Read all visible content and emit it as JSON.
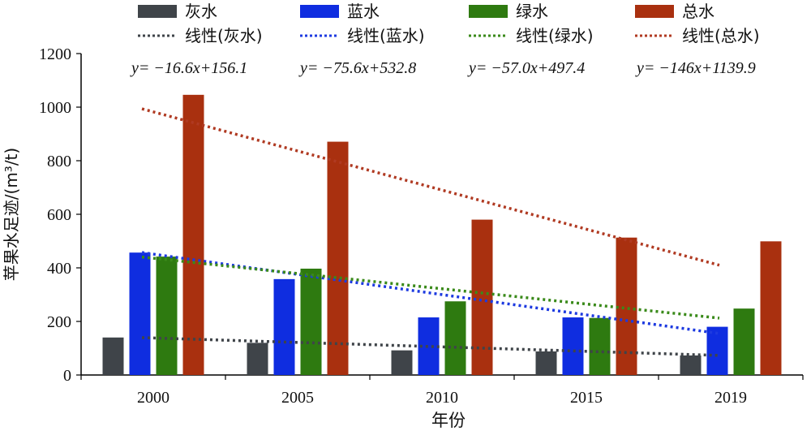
{
  "chart_data": {
    "type": "bar",
    "xlabel": "年份",
    "ylabel": "苹果水足迹/(m³/t)",
    "ylim": [
      0,
      1200
    ],
    "yticks": [
      0,
      200,
      400,
      600,
      800,
      1000,
      1200
    ],
    "categories": [
      "2000",
      "2005",
      "2010",
      "2015",
      "2019"
    ],
    "legend_position": "top",
    "series": [
      {
        "name": "灰水",
        "color": "#3f4449",
        "values": [
          140,
          120,
          92,
          88,
          73
        ]
      },
      {
        "name": "蓝水",
        "color": "#0f2de0",
        "values": [
          457,
          358,
          215,
          215,
          180
        ]
      },
      {
        "name": "绿水",
        "color": "#2e7a10",
        "values": [
          442,
          397,
          275,
          213,
          248
        ]
      },
      {
        "name": "总水",
        "color": "#a9300f",
        "values": [
          1046,
          871,
          580,
          513,
          499
        ]
      }
    ],
    "trendlines": [
      {
        "name": "线性(灰水)",
        "color": "#3f4449",
        "equation": "y= −16.6x+156.1",
        "slope": -16.6,
        "intercept": 156.1
      },
      {
        "name": "线性(蓝水)",
        "color": "#1d3ae0",
        "equation": "y= −75.6x+532.8",
        "slope": -75.6,
        "intercept": 532.8
      },
      {
        "name": "线性(绿水)",
        "color": "#3a8a1a",
        "equation": "y= −57.0x+497.4",
        "slope": -57.0,
        "intercept": 497.4
      },
      {
        "name": "线性(总水)",
        "color": "#b03a22",
        "equation": "y= −146x+1139.9",
        "slope": -146,
        "intercept": 1139.9
      }
    ]
  }
}
